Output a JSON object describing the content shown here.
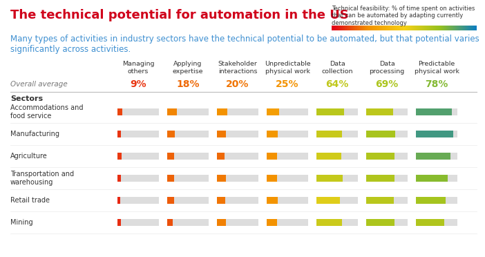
{
  "chart_data": {
    "type": "heatmap",
    "title": "The technical potential for automation in the US",
    "subtitle": "Many types of activities in industry sectors have the technical potential to be automated, but that potential varies significantly across activities.",
    "color_label": "Technical feasibility: % of time spent on activities that can be automated by adapting currently demonstrated technology",
    "color_range": [
      0,
      100
    ],
    "color_scale": [
      "#e2001a",
      "#f39200",
      "#f7d117",
      "#95c11f",
      "#0a7dc2"
    ],
    "columns": [
      "Managing others",
      "Applying expertise",
      "Stakeholder interactions",
      "Unpredictable physical work",
      "Data collection",
      "Data processing",
      "Predictable physical work"
    ],
    "overall_label": "Overall average",
    "overall_values": [
      9,
      18,
      20,
      25,
      64,
      69,
      78
    ],
    "overall_value_labels": [
      "9%",
      "18%",
      "20%",
      "25%",
      "64%",
      "69%",
      "78%"
    ],
    "rows_label": "Sectors",
    "rows": [
      "Accommodations and food service",
      "Manufacturing",
      "Agriculture",
      "Transportation and warehousing",
      "Retail trade",
      "Mining"
    ],
    "cells": [
      [
        12,
        23,
        25,
        30,
        66,
        65,
        87
      ],
      [
        9,
        19,
        21,
        27,
        62,
        70,
        90
      ],
      [
        10,
        17,
        18,
        25,
        60,
        68,
        83
      ],
      [
        8,
        17,
        21,
        25,
        63,
        68,
        77
      ],
      [
        7,
        16,
        20,
        26,
        56,
        66,
        71
      ],
      [
        8,
        14,
        22,
        25,
        61,
        69,
        68
      ]
    ]
  }
}
